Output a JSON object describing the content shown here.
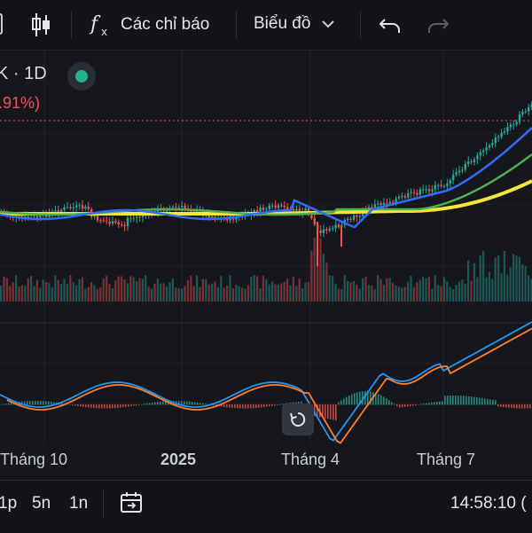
{
  "toolbar": {
    "indicators_label": "Các chỉ báo",
    "chart_type_label": "Biểu đồ",
    "icons": [
      "candlestick-icon",
      "function-icon",
      "chevron-down-icon",
      "undo-icon",
      "redo-icon"
    ]
  },
  "legend": {
    "symbol": "K · 1D",
    "change": ".91%)",
    "status_color": "#22b08e"
  },
  "time_axis": [
    "Tháng 10",
    "2025",
    "Tháng 4",
    "Tháng 7"
  ],
  "bottom": {
    "timeframes": [
      "1p",
      "5n",
      "1n"
    ],
    "clock": "14:58:10 ("
  },
  "colors": {
    "up": "#26a69a",
    "down": "#ef5350",
    "ma_fast": "#2f6bff",
    "ma_mid": "#4caf50",
    "ma_slow": "#f5e63a",
    "macd": "#2196f3",
    "signal": "#ff7f2a"
  }
}
